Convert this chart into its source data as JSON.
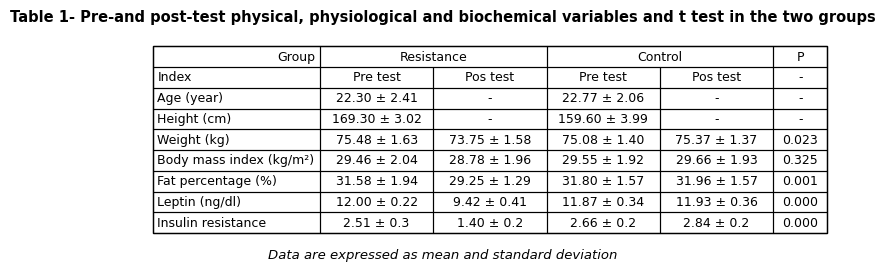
{
  "title": "Table 1- Pre-and post-test physical, physiological and biochemical variables and t test in the two groups",
  "title_fontsize": 10.5,
  "footnote": "Data are expressed as mean and standard deviation",
  "footnote_fontsize": 9.5,
  "col_headers_row1": [
    "Group",
    "Resistance",
    "Control",
    "P"
  ],
  "col_headers_row2": [
    "Index",
    "Pre test",
    "Pos test",
    "Pre test",
    "Pos test",
    "-"
  ],
  "rows": [
    [
      "Age (year)",
      "22.30 ± 2.41",
      "-",
      "22.77 ± 2.06",
      "-",
      "-"
    ],
    [
      "Height (cm)",
      "169.30 ± 3.02",
      "-",
      "159.60 ± 3.99",
      "-",
      "-"
    ],
    [
      "Weight (kg)",
      "75.48 ± 1.63",
      "73.75 ± 1.58",
      "75.08 ± 1.40",
      "75.37 ± 1.37",
      "0.023"
    ],
    [
      "Body mass index (kg/m²)",
      "29.46 ± 2.04",
      "28.78 ± 1.96",
      "29.55 ± 1.92",
      "29.66 ± 1.93",
      "0.325"
    ],
    [
      "Fat percentage (%)",
      "31.58 ± 1.94",
      "29.25 ± 1.29",
      "31.80 ± 1.57",
      "31.96 ± 1.57",
      "0.001"
    ],
    [
      "Leptin (ng/dl)",
      "12.00 ± 0.22",
      "9.42 ± 0.41",
      "11.87 ± 0.34",
      "11.93 ± 0.36",
      "0.000"
    ],
    [
      "Insulin resistance",
      "2.51 ± 0.3",
      "1.40 ± 0.2",
      "2.66 ± 0.2",
      "2.84 ± 0.2",
      "0.000"
    ]
  ],
  "background_color": "#ffffff",
  "border_color": "#000000",
  "text_color": "#000000",
  "cell_fontsize": 9.0
}
